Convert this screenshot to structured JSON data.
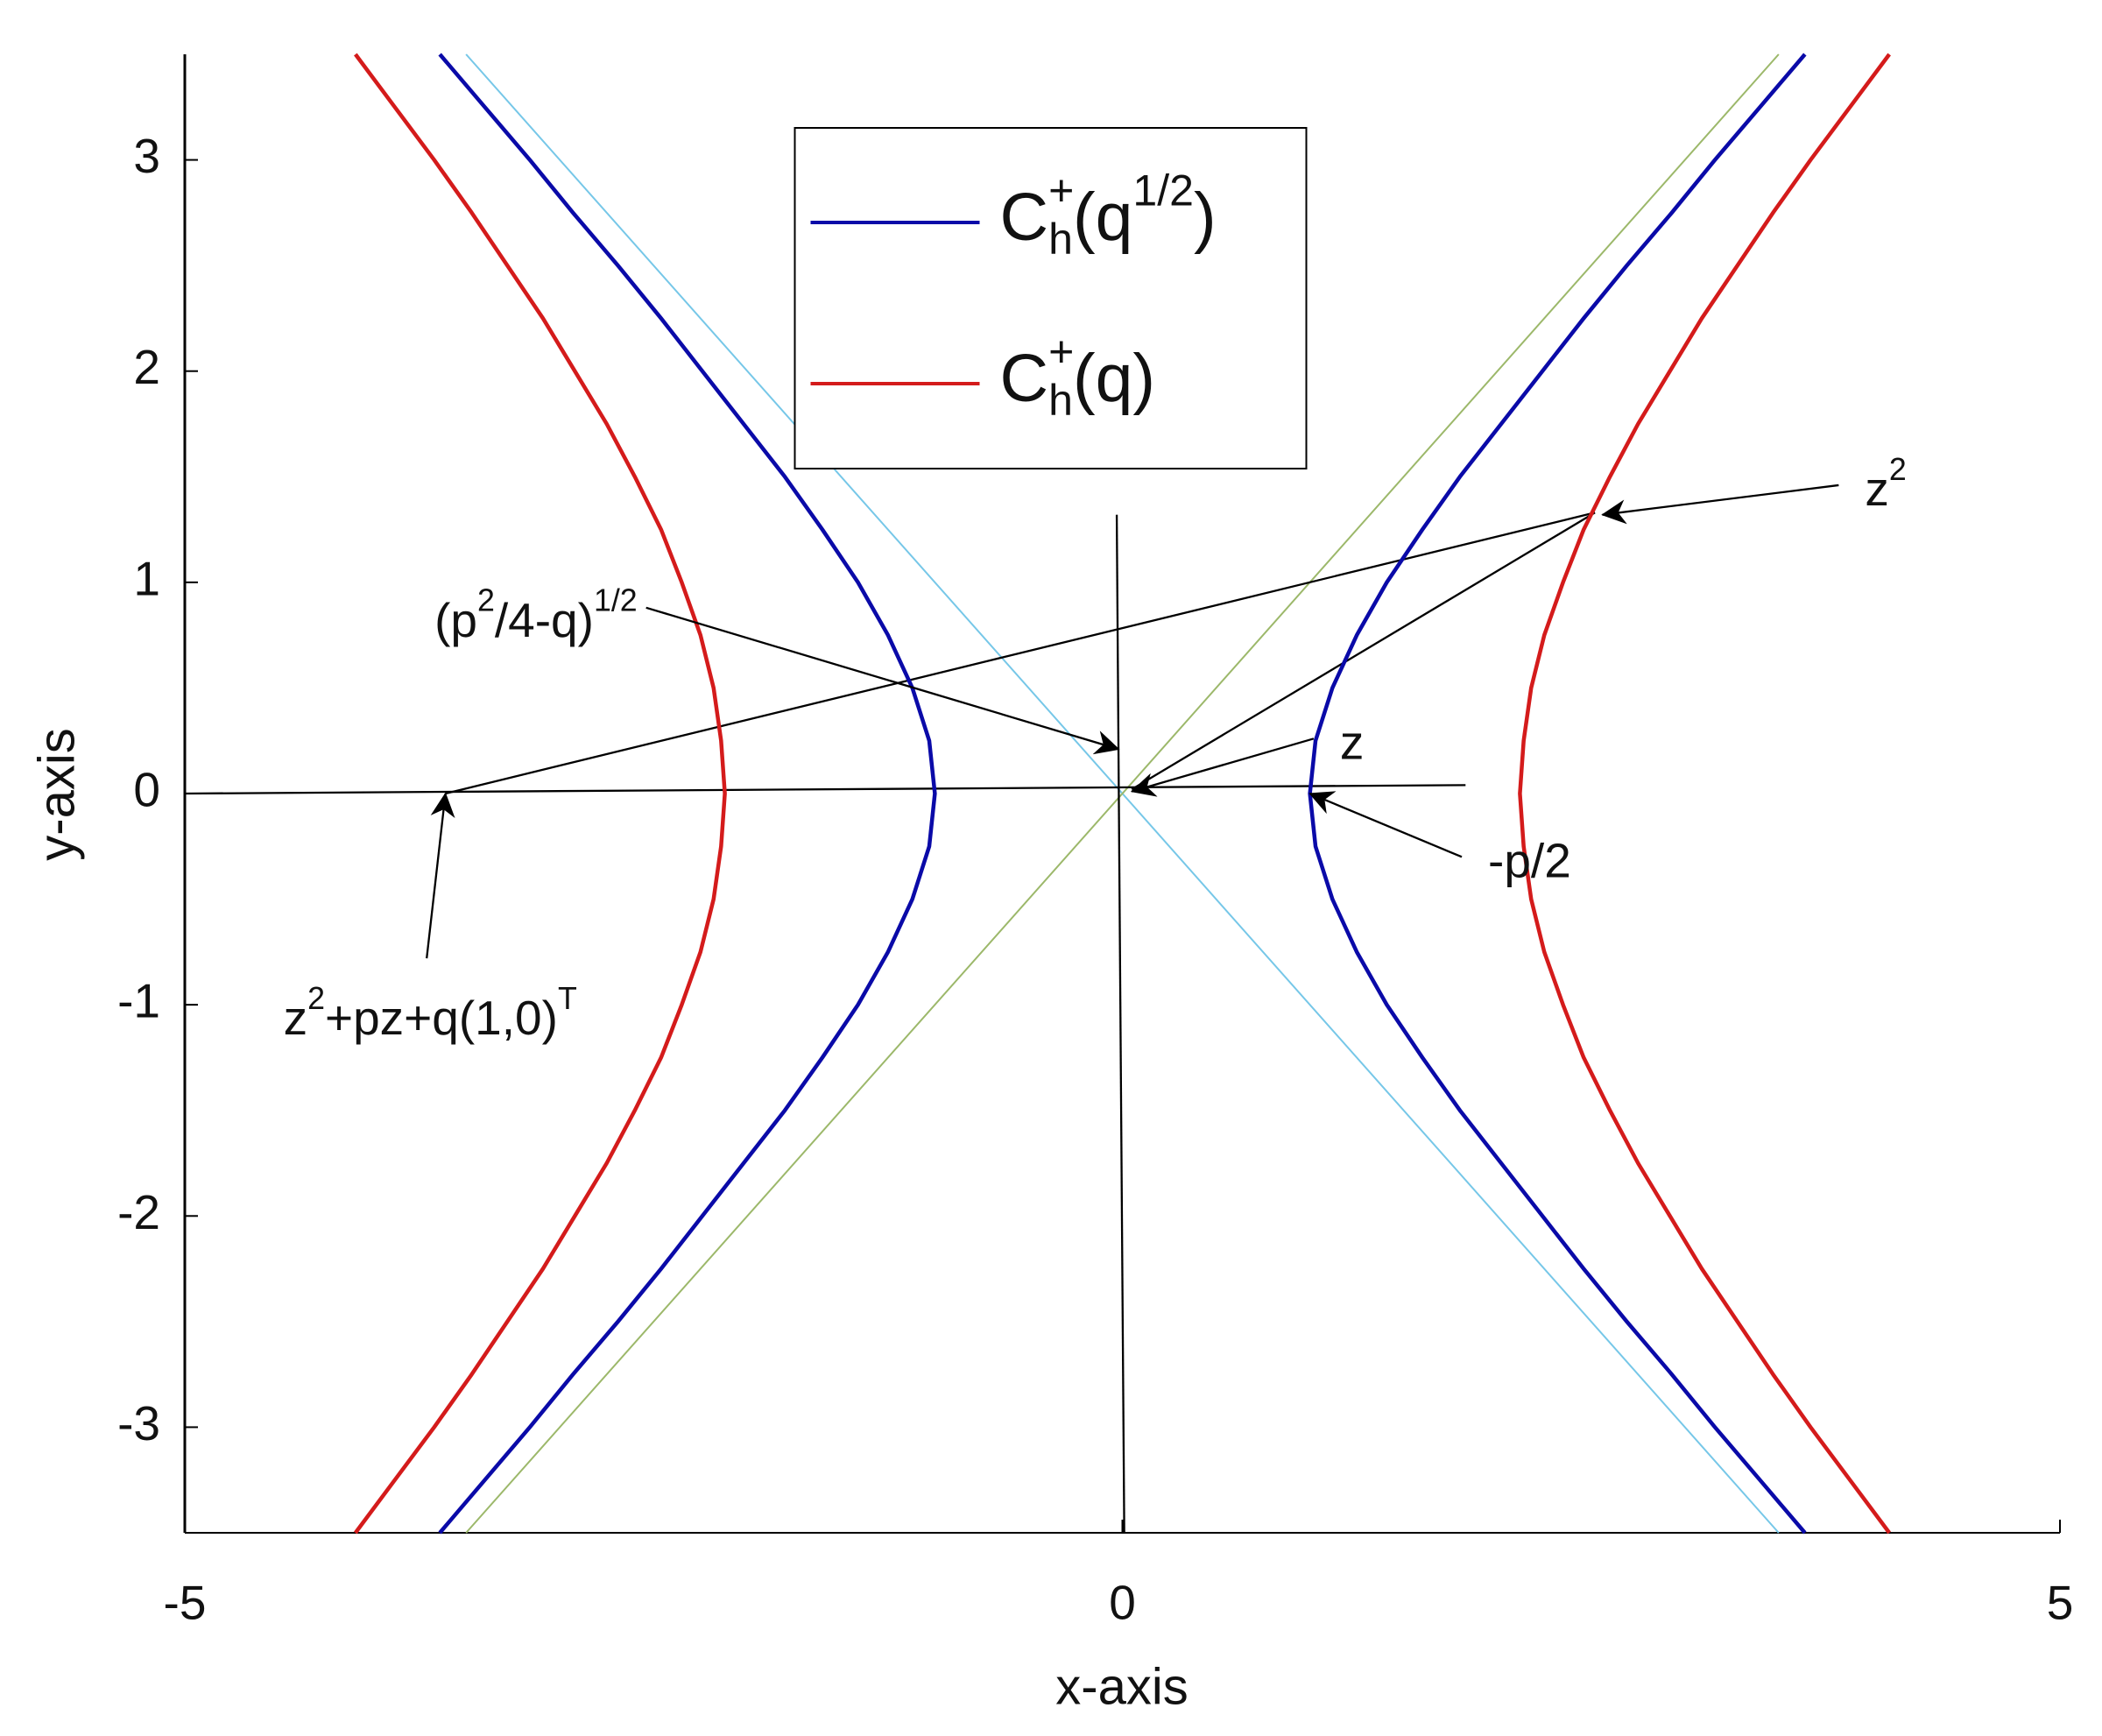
{
  "chart_data": {
    "type": "line",
    "x_label": "x-axis",
    "y_label": "y-axis",
    "xlim": [
      -5,
      5
    ],
    "ylim": [
      -3.5,
      3.5
    ],
    "xticks": [
      -5,
      0,
      5
    ],
    "yticks": [
      -3,
      -2,
      -1,
      0,
      1,
      2,
      3
    ],
    "grid": false,
    "legend": "upper-center",
    "series": [
      {
        "name": [
          [
            "C",
            "base"
          ],
          [
            "+",
            "sup"
          ],
          [
            "h",
            "under"
          ],
          [
            "(q",
            "base"
          ],
          [
            "1/2",
            "sup"
          ],
          [
            ")",
            "base"
          ]
        ],
        "color": "#0a0aa8",
        "x": [
          3.64,
          3.4,
          3.16,
          2.93,
          2.69,
          2.46,
          2.24,
          2.02,
          1.8,
          1.6,
          1.41,
          1.25,
          1.12,
          1.03,
          1,
          1.03,
          1.12,
          1.25,
          1.41,
          1.6,
          1.8,
          2.02,
          2.24,
          2.46,
          2.69,
          2.93,
          3.16,
          3.4,
          3.64,
          null,
          -3.64,
          -3.4,
          -3.16,
          -2.93,
          -2.69,
          -2.46,
          -2.24,
          -2.02,
          -1.8,
          -1.6,
          -1.41,
          -1.25,
          -1.12,
          -1.03,
          -1,
          -1.03,
          -1.12,
          -1.25,
          -1.41,
          -1.6,
          -1.8,
          -2.02,
          -2.24,
          -2.46,
          -2.69,
          -2.93,
          -3.16,
          -3.4,
          -3.64
        ],
        "values": [
          -3.5,
          -3.25,
          -3,
          -2.75,
          -2.5,
          -2.25,
          -2,
          -1.75,
          -1.5,
          -1.25,
          -1,
          -0.75,
          -0.5,
          -0.25,
          0,
          0.25,
          0.5,
          0.75,
          1,
          1.25,
          1.5,
          1.75,
          2,
          2.25,
          2.5,
          2.75,
          3,
          3.25,
          3.5,
          null,
          -3.5,
          -3.25,
          -3,
          -2.75,
          -2.5,
          -2.25,
          -2,
          -1.75,
          -1.5,
          -1.25,
          -1,
          -0.75,
          -0.5,
          -0.25,
          0,
          0.25,
          0.5,
          0.75,
          1,
          1.25,
          1.5,
          1.75,
          2,
          2.25,
          2.5,
          2.75,
          3,
          3.25,
          3.5
        ]
      },
      {
        "name": [
          [
            "C",
            "base"
          ],
          [
            "+",
            "sup"
          ],
          [
            "h",
            "under"
          ],
          [
            "(q)",
            "base"
          ]
        ],
        "color": "#d41b1b",
        "x": [
          4.09,
          3.88,
          3.67,
          3.47,
          3.28,
          3.09,
          2.92,
          2.75,
          2.6,
          2.46,
          2.35,
          2.25,
          2.18,
          2.14,
          2.12,
          2.14,
          2.18,
          2.25,
          2.35,
          2.46,
          2.6,
          2.75,
          2.92,
          3.09,
          3.28,
          3.47,
          3.67,
          3.88,
          4.09,
          null,
          -4.09,
          -3.88,
          -3.67,
          -3.47,
          -3.28,
          -3.09,
          -2.92,
          -2.75,
          -2.6,
          -2.46,
          -2.35,
          -2.25,
          -2.18,
          -2.14,
          -2.12,
          -2.14,
          -2.18,
          -2.25,
          -2.35,
          -2.46,
          -2.6,
          -2.75,
          -2.92,
          -3.09,
          -3.28,
          -3.47,
          -3.67,
          -3.88,
          -4.09
        ],
        "values": [
          -3.5,
          -3.25,
          -3,
          -2.75,
          -2.5,
          -2.25,
          -2,
          -1.75,
          -1.5,
          -1.25,
          -1,
          -0.75,
          -0.5,
          -0.25,
          0,
          0.25,
          0.5,
          0.75,
          1,
          1.25,
          1.5,
          1.75,
          2,
          2.25,
          2.5,
          2.75,
          3,
          3.25,
          3.5,
          null,
          -3.5,
          -3.25,
          -3,
          -2.75,
          -2.5,
          -2.25,
          -2,
          -1.75,
          -1.5,
          -1.25,
          -1,
          -0.75,
          -0.5,
          -0.25,
          0,
          0.25,
          0.5,
          0.75,
          1,
          1.25,
          1.5,
          1.75,
          2,
          2.25,
          2.5,
          2.75,
          3,
          3.25,
          3.5
        ]
      }
    ],
    "lines": [
      {
        "color": "#76c7e8",
        "x": [
          -3.5,
          3.5
        ],
        "y": [
          3.5,
          -3.5
        ]
      },
      {
        "color": "#9cb86a",
        "x": [
          -3.5,
          3.5
        ],
        "y": [
          -3.5,
          3.5
        ]
      },
      {
        "color": "#000000",
        "x": [
          -5,
          1.83
        ],
        "y": [
          0,
          0.04
        ]
      },
      {
        "color": "#000000",
        "x": [
          -0.03,
          0.01
        ],
        "y": [
          1.32,
          -3.5
        ]
      },
      {
        "color": "#000000",
        "x": [
          -3.61,
          2.52
        ],
        "y": [
          0,
          1.33
        ]
      },
      {
        "color": "#000000",
        "x": [
          2.52,
          0.05
        ],
        "y": [
          1.33,
          0.02
        ]
      }
    ],
    "annotations": [
      {
        "text": [
          [
            "z",
            "base"
          ],
          [
            "2",
            "sup"
          ]
        ],
        "xy": [
          2.56,
          1.32
        ],
        "xytext": [
          3.82,
          1.46
        ],
        "side": "right"
      },
      {
        "text": [
          [
            "(p",
            "base"
          ],
          [
            "2",
            "sup"
          ],
          [
            "/4-q)",
            "base"
          ],
          [
            "1/2",
            "sup"
          ]
        ],
        "xy": [
          -0.02,
          0.21
        ],
        "xytext": [
          -2.54,
          0.88
        ],
        "side": "left"
      },
      {
        "text": [
          [
            "z",
            "base"
          ]
        ],
        "xy": [
          0.05,
          0.01
        ],
        "xytext": [
          1.02,
          0.26
        ],
        "side": "right"
      },
      {
        "text": [
          [
            "-p/2",
            "base"
          ]
        ],
        "xy": [
          1.0,
          0.0
        ],
        "xytext": [
          1.81,
          -0.3
        ],
        "side": "right"
      },
      {
        "text": [
          [
            "z",
            "base"
          ],
          [
            "2",
            "sup"
          ],
          [
            "+pz+q(1,0)",
            "base"
          ],
          [
            "T",
            "sup"
          ]
        ],
        "xy": [
          -3.61,
          0.0
        ],
        "xytext": [
          -3.71,
          -0.78
        ],
        "side": "below"
      }
    ]
  }
}
